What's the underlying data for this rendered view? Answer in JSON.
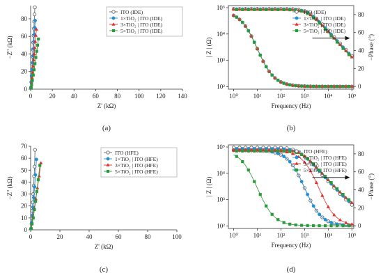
{
  "colors": {
    "ito": "#666666",
    "tio2_1": "#1f8fd6",
    "tio2_3": "#e0302a",
    "tio2_5": "#2a9a3a",
    "axis": "#333333",
    "arrow": "#111111"
  },
  "chart_data": [
    {
      "panel": "a",
      "type": "scatter",
      "caption": "(a)",
      "xlabel": "Z' (kΩ)",
      "ylabel": "−Z'' (kΩ)",
      "xlim": [
        0,
        140
      ],
      "ylim": [
        0,
        95
      ],
      "xticks": [
        "0",
        "20",
        "40",
        "60",
        "80",
        "100",
        "120",
        "140"
      ],
      "yticks": [
        "0",
        "20",
        "40",
        "60",
        "80"
      ],
      "legend_position": "top-right",
      "series": [
        {
          "name": "ITO (IDE)",
          "color_key": "ito",
          "marker": "open-circle",
          "x": [
            0.3,
            0.6,
            0.9,
            1.2,
            1.5,
            1.8,
            2.1,
            2.4,
            2.7,
            3.0,
            3.3,
            3.6,
            3.9
          ],
          "y": [
            2,
            8,
            15,
            22,
            29,
            37,
            45,
            53,
            61,
            69,
            77,
            85,
            93
          ]
        },
        {
          "name": "1×TiO₂ | ITO (IDE)",
          "color_key": "tio2_1",
          "marker": "filled-circle",
          "x": [
            0.3,
            0.7,
            1.0,
            1.4,
            1.8,
            2.2,
            2.6,
            3.0,
            3.4,
            3.8,
            4.2
          ],
          "y": [
            2,
            8,
            15,
            22,
            30,
            38,
            46,
            54,
            62,
            70,
            78
          ]
        },
        {
          "name": "3×TiO₂ | ITO (IDE)",
          "color_key": "tio2_3",
          "marker": "filled-triangle",
          "x": [
            0.3,
            0.8,
            1.3,
            1.8,
            2.3,
            2.8,
            3.3,
            3.8,
            4.3,
            4.8,
            5.3
          ],
          "y": [
            2,
            7,
            13,
            19,
            26,
            33,
            40,
            47,
            54,
            61,
            68
          ]
        },
        {
          "name": "5×TiO₂ | ITO (IDE)",
          "color_key": "tio2_5",
          "marker": "filled-square",
          "x": [
            0.3,
            0.9,
            1.6,
            2.4,
            3.2,
            4.0,
            4.8,
            5.6,
            6.4,
            7.2
          ],
          "y": [
            1,
            5,
            10,
            16,
            22,
            29,
            36,
            43,
            50,
            57
          ]
        }
      ]
    },
    {
      "panel": "b",
      "type": "scatter",
      "caption": "(b)",
      "xlabel": "Frequency (Hz)",
      "ylabel": "| Z | (Ω)",
      "ylabel_right": "−Phase (°)",
      "xscale": "log",
      "yscale": "log",
      "xlim": [
        0.6,
        120000
      ],
      "ylim": [
        80,
        120000
      ],
      "ylim_right": [
        -3,
        90
      ],
      "xticks": [
        {
          "value": 1,
          "label": "10⁰"
        },
        {
          "value": 10,
          "label": "10¹"
        },
        {
          "value": 100,
          "label": "10²"
        },
        {
          "value": 1000,
          "label": "10³"
        },
        {
          "value": 10000,
          "label": "10⁴"
        },
        {
          "value": 100000,
          "label": "10⁵"
        }
      ],
      "yticks": [
        {
          "value": 100,
          "label": "10²"
        },
        {
          "value": 1000,
          "label": "10³"
        },
        {
          "value": 10000,
          "label": "10⁴"
        },
        {
          "value": 100000,
          "label": "10⁵"
        }
      ],
      "yticks_right": [
        "0",
        "20",
        "40",
        "60",
        "80"
      ],
      "legend_position": "top-right",
      "annotation": "arrow pointing right toward phase axis",
      "legend": [
        {
          "name": "ITO (IDE)",
          "color_key": "ito",
          "marker": "open-circle"
        },
        {
          "name": "1×TiO₂ | ITO (IDE)",
          "color_key": "tio2_1",
          "marker": "filled-circle"
        },
        {
          "name": "3×TiO₂ | ITO (IDE)",
          "color_key": "tio2_3",
          "marker": "filled-triangle"
        },
        {
          "name": "5×TiO₂ | ITO (IDE)",
          "color_key": "tio2_5",
          "marker": "filled-square"
        }
      ],
      "magnitude": {
        "z_low": [
          90000,
          88000,
          86000,
          84000
        ],
        "z_high": [
          130,
          128,
          125,
          122
        ],
        "corner_hz": [
          1500,
          1450,
          1400,
          1350
        ]
      },
      "phase": {
        "low_deg": [
          84,
          84,
          84,
          84
        ],
        "corner_hz": [
          10,
          10,
          10,
          10
        ]
      }
    },
    {
      "panel": "c",
      "type": "scatter",
      "caption": "(c)",
      "xlabel": "Z' (kΩ)",
      "ylabel": "−Z'' (kΩ)",
      "xlim": [
        0,
        100
      ],
      "ylim": [
        0,
        70
      ],
      "xticks": [
        "0",
        "20",
        "40",
        "60",
        "80",
        "100"
      ],
      "yticks": [
        "0",
        "10",
        "20",
        "30",
        "40",
        "50",
        "60",
        "70"
      ],
      "legend_position": "top-right",
      "series": [
        {
          "name": "ITO (HFE)",
          "color_key": "ito",
          "marker": "open-circle",
          "x": [
            0.3,
            0.6,
            0.9,
            1.2,
            1.5,
            1.8,
            2.1,
            2.4,
            2.7,
            3.0
          ],
          "y": [
            1,
            5,
            10,
            16,
            23,
            30,
            37,
            45,
            53,
            67
          ]
        },
        {
          "name": "1×TiO₂ | ITO (HFE)",
          "color_key": "tio2_1",
          "marker": "filled-circle",
          "x": [
            0.3,
            0.7,
            1.1,
            1.6,
            2.1,
            2.7,
            3.3,
            4.0
          ],
          "y": [
            1,
            6,
            12,
            19,
            27,
            36,
            46,
            59
          ]
        },
        {
          "name": "3×TiO₂ | ITO (HFE)",
          "color_key": "tio2_3",
          "marker": "filled-triangle",
          "x": [
            0.3,
            0.9,
            1.6,
            2.5,
            3.5,
            4.6,
            5.8,
            7.0
          ],
          "y": [
            1,
            5,
            11,
            18,
            26,
            35,
            45,
            56
          ]
        },
        {
          "name": "5×TiO₂ | ITO (HFE)",
          "color_key": "tio2_5",
          "marker": "filled-square",
          "x": [
            0.3,
            1.0,
            1.8,
            2.6,
            3.4,
            4.2,
            5.2,
            6.3
          ],
          "y": [
            1,
            5,
            10,
            17,
            24,
            32,
            42,
            54
          ]
        }
      ]
    },
    {
      "panel": "d",
      "type": "scatter",
      "caption": "(d)",
      "xlabel": "Frequency (Hz)",
      "ylabel": "| Z | (Ω)",
      "ylabel_right": "−Phase (°)",
      "xscale": "log",
      "yscale": "log",
      "xlim": [
        0.6,
        120000
      ],
      "ylim": [
        80,
        120000
      ],
      "ylim_right": [
        -3,
        90
      ],
      "xticks": [
        {
          "value": 1,
          "label": "10⁰"
        },
        {
          "value": 10,
          "label": "10¹"
        },
        {
          "value": 100,
          "label": "10²"
        },
        {
          "value": 1000,
          "label": "10³"
        },
        {
          "value": 10000,
          "label": "10⁴"
        },
        {
          "value": 100000,
          "label": "10⁵"
        }
      ],
      "yticks": [
        {
          "value": 100,
          "label": "10²"
        },
        {
          "value": 1000,
          "label": "10³"
        },
        {
          "value": 10000,
          "label": "10⁴"
        },
        {
          "value": 100000,
          "label": "10⁵"
        }
      ],
      "yticks_right": [
        "0",
        "20",
        "40",
        "60",
        "80"
      ],
      "legend_position": "top-right",
      "annotation": "arrow pointing right toward phase axis",
      "legend": [
        {
          "name": "ITO (HFE)",
          "color_key": "ito",
          "marker": "open-circle"
        },
        {
          "name": "1×TiO₂ | ITO (HFE)",
          "color_key": "tio2_1",
          "marker": "filled-circle"
        },
        {
          "name": "3×TiO₂ | ITO (HFE)",
          "color_key": "tio2_3",
          "marker": "filled-triangle"
        },
        {
          "name": "5×TiO₂ | ITO (HFE)",
          "color_key": "tio2_5",
          "marker": "filled-square"
        }
      ],
      "magnitude": {
        "z_low": [
          95000,
          85000,
          78000,
          70000
        ],
        "z_high": [
          155,
          175,
          215,
          250
        ],
        "corner_hz": [
          500,
          600,
          700,
          800
        ]
      },
      "phase": {
        "low_deg": [
          84,
          84,
          84,
          84
        ],
        "corner_hz": [
          1000,
          1000,
          4000,
          10
        ]
      }
    }
  ]
}
